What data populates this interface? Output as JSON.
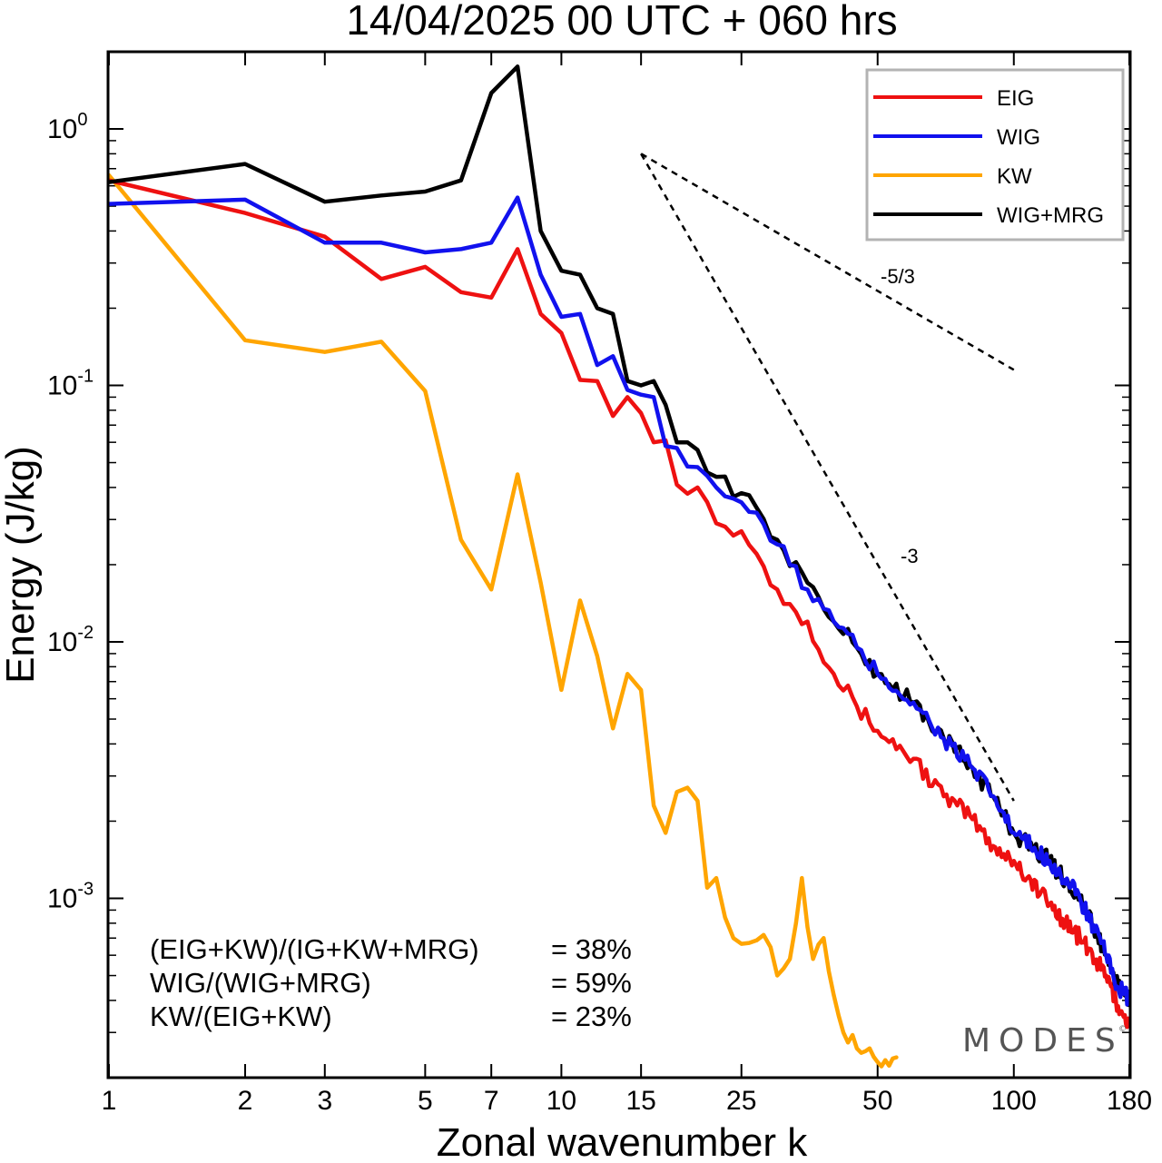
{
  "title": "14/04/2025  00 UTC  + 060 hrs",
  "colors": {
    "EIG": "#ee1111",
    "WIG": "#1111ee",
    "KW": "#ffa500",
    "WIG+MRG": "#000000"
  },
  "chart_data": {
    "type": "line",
    "title": "14/04/2025  00 UTC  + 060 hrs",
    "xlabel": "Zonal wavenumber k",
    "ylabel": "Energy (J/kg)",
    "xscale": "log",
    "yscale": "log",
    "xlim": [
      1,
      180
    ],
    "ylim": [
      0.00022,
      2.0
    ],
    "xticks": [
      1,
      2,
      3,
      5,
      7,
      10,
      15,
      25,
      50,
      100,
      180
    ],
    "yticks": [
      {
        "value": 1,
        "base": "10",
        "exp": "0"
      },
      {
        "value": 0.1,
        "base": "10",
        "exp": "-1"
      },
      {
        "value": 0.01,
        "base": "10",
        "exp": "-2"
      },
      {
        "value": 0.001,
        "base": "10",
        "exp": "-3"
      }
    ],
    "legend_position": "top-right",
    "series": [
      {
        "name": "EIG",
        "anchors": [
          [
            1,
            0.63
          ],
          [
            2,
            0.47
          ],
          [
            3,
            0.38
          ],
          [
            4,
            0.26
          ],
          [
            5,
            0.29
          ],
          [
            7,
            0.22
          ],
          [
            8,
            0.34
          ],
          [
            9,
            0.19
          ],
          [
            10,
            0.16
          ],
          [
            11,
            0.105
          ],
          [
            12,
            0.104
          ],
          [
            13,
            0.076
          ],
          [
            14,
            0.09
          ],
          [
            15,
            0.078
          ],
          [
            16,
            0.06
          ],
          [
            17,
            0.061
          ],
          [
            18,
            0.041
          ],
          [
            20,
            0.04
          ],
          [
            22,
            0.029
          ],
          [
            25,
            0.027
          ],
          [
            30,
            0.016
          ],
          [
            35,
            0.012
          ],
          [
            40,
            0.0075
          ],
          [
            45,
            0.0056
          ],
          [
            50,
            0.0045
          ],
          [
            60,
            0.0035
          ],
          [
            70,
            0.0025
          ],
          [
            80,
            0.0021
          ],
          [
            90,
            0.0016
          ],
          [
            100,
            0.0014
          ],
          [
            120,
            0.00095
          ],
          [
            140,
            0.0007
          ],
          [
            160,
            0.0005
          ],
          [
            170,
            0.00038
          ],
          [
            180,
            0.00032
          ]
        ]
      },
      {
        "name": "WIG",
        "anchors": [
          [
            1,
            0.51
          ],
          [
            2,
            0.53
          ],
          [
            3,
            0.36
          ],
          [
            4,
            0.36
          ],
          [
            5,
            0.33
          ],
          [
            6,
            0.34
          ],
          [
            7,
            0.36
          ],
          [
            8,
            0.54
          ],
          [
            9,
            0.27
          ],
          [
            10,
            0.185
          ],
          [
            11,
            0.19
          ],
          [
            12,
            0.12
          ],
          [
            13,
            0.13
          ],
          [
            14,
            0.096
          ],
          [
            15,
            0.092
          ],
          [
            16,
            0.09
          ],
          [
            17,
            0.058
          ],
          [
            18,
            0.057
          ],
          [
            20,
            0.048
          ],
          [
            22,
            0.04
          ],
          [
            25,
            0.035
          ],
          [
            30,
            0.024
          ],
          [
            35,
            0.016
          ],
          [
            40,
            0.012
          ],
          [
            45,
            0.0095
          ],
          [
            50,
            0.0075
          ],
          [
            60,
            0.0058
          ],
          [
            70,
            0.0042
          ],
          [
            80,
            0.0033
          ],
          [
            90,
            0.0025
          ],
          [
            100,
            0.0018
          ],
          [
            120,
            0.0014
          ],
          [
            140,
            0.001
          ],
          [
            160,
            0.0006
          ],
          [
            170,
            0.00045
          ],
          [
            180,
            0.0004
          ]
        ]
      },
      {
        "name": "KW",
        "anchors": [
          [
            1,
            0.66
          ],
          [
            2,
            0.15
          ],
          [
            3,
            0.135
          ],
          [
            4,
            0.148
          ],
          [
            5,
            0.095
          ],
          [
            6,
            0.025
          ],
          [
            7,
            0.016
          ],
          [
            8,
            0.045
          ],
          [
            9,
            0.017
          ],
          [
            10,
            0.0065
          ],
          [
            11,
            0.0145
          ],
          [
            12,
            0.0088
          ],
          [
            13,
            0.0046
          ],
          [
            14,
            0.0075
          ],
          [
            15,
            0.0065
          ],
          [
            16,
            0.0023
          ],
          [
            17,
            0.0018
          ],
          [
            18,
            0.0026
          ],
          [
            19,
            0.0027
          ],
          [
            20,
            0.0024
          ],
          [
            21,
            0.0011
          ],
          [
            22,
            0.0012
          ],
          [
            24,
            0.0007
          ],
          [
            26,
            0.00067
          ],
          [
            28,
            0.00072
          ],
          [
            30,
            0.0005
          ],
          [
            32,
            0.00058
          ],
          [
            34,
            0.0012
          ],
          [
            36,
            0.00058
          ],
          [
            38,
            0.0007
          ],
          [
            40,
            0.00042
          ],
          [
            42,
            0.0003
          ],
          [
            45,
            0.00026
          ],
          [
            50,
            0.00023
          ],
          [
            55,
            0.00024
          ]
        ]
      },
      {
        "name": "WIG+MRG",
        "anchors": [
          [
            1,
            0.62
          ],
          [
            2,
            0.73
          ],
          [
            3,
            0.52
          ],
          [
            4,
            0.55
          ],
          [
            5,
            0.57
          ],
          [
            6,
            0.63
          ],
          [
            7,
            1.38
          ],
          [
            8,
            1.75
          ],
          [
            9,
            0.4
          ],
          [
            10,
            0.28
          ],
          [
            11,
            0.27
          ],
          [
            12,
            0.2
          ],
          [
            13,
            0.19
          ],
          [
            14,
            0.104
          ],
          [
            15,
            0.1
          ],
          [
            16,
            0.104
          ],
          [
            17,
            0.084
          ],
          [
            18,
            0.06
          ],
          [
            19,
            0.06
          ],
          [
            20,
            0.056
          ],
          [
            22,
            0.044
          ],
          [
            25,
            0.038
          ],
          [
            30,
            0.025
          ],
          [
            35,
            0.017
          ],
          [
            40,
            0.012
          ],
          [
            45,
            0.0095
          ],
          [
            50,
            0.0075
          ],
          [
            60,
            0.0058
          ],
          [
            70,
            0.0042
          ],
          [
            80,
            0.0033
          ],
          [
            90,
            0.0025
          ],
          [
            100,
            0.0018
          ],
          [
            120,
            0.0014
          ],
          [
            140,
            0.001
          ],
          [
            160,
            0.0006
          ],
          [
            170,
            0.00045
          ],
          [
            180,
            0.0004
          ]
        ]
      }
    ],
    "reference_lines": [
      {
        "label": "-5/3",
        "from": [
          15,
          0.8
        ],
        "to": [
          100,
          0.115
        ]
      },
      {
        "label": "-3",
        "from": [
          15,
          0.8
        ],
        "to": [
          100,
          0.0024
        ]
      }
    ],
    "annotations": [
      {
        "left": "(EIG+KW)/(IG+KW+MRG)",
        "right": "= 38%"
      },
      {
        "left": "WIG/(WIG+MRG)",
        "right": "= 59%"
      },
      {
        "left": "KW/(EIG+KW)",
        "right": "= 23%"
      }
    ],
    "watermark": "MODES",
    "watermark_mark": "©"
  }
}
